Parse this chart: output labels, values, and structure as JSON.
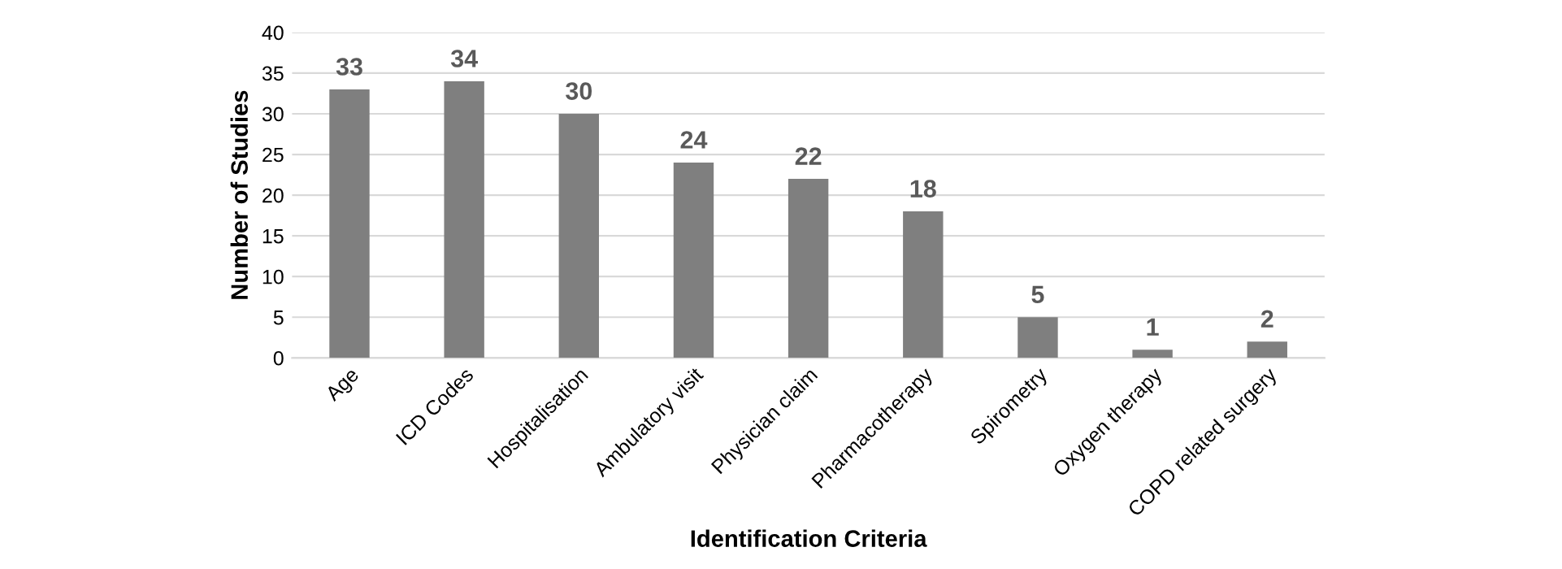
{
  "chart_data": {
    "type": "bar",
    "xlabel": "Identification Criteria",
    "ylabel": "Number of Studies",
    "categories": [
      "Age",
      "ICD Codes",
      "Hospitalisation",
      "Ambulatory visit",
      "Physician claim",
      "Pharmacotherapy",
      "Spirometry",
      "Oxygen therapy",
      "COPD related surgery"
    ],
    "values": [
      33,
      34,
      30,
      24,
      22,
      18,
      5,
      1,
      2
    ],
    "color": "#7f7f7f",
    "ylim": [
      0,
      40
    ],
    "yticks": [
      0,
      5,
      10,
      15,
      20,
      25,
      30,
      35,
      40
    ],
    "grid": "y",
    "data_labels": true
  }
}
